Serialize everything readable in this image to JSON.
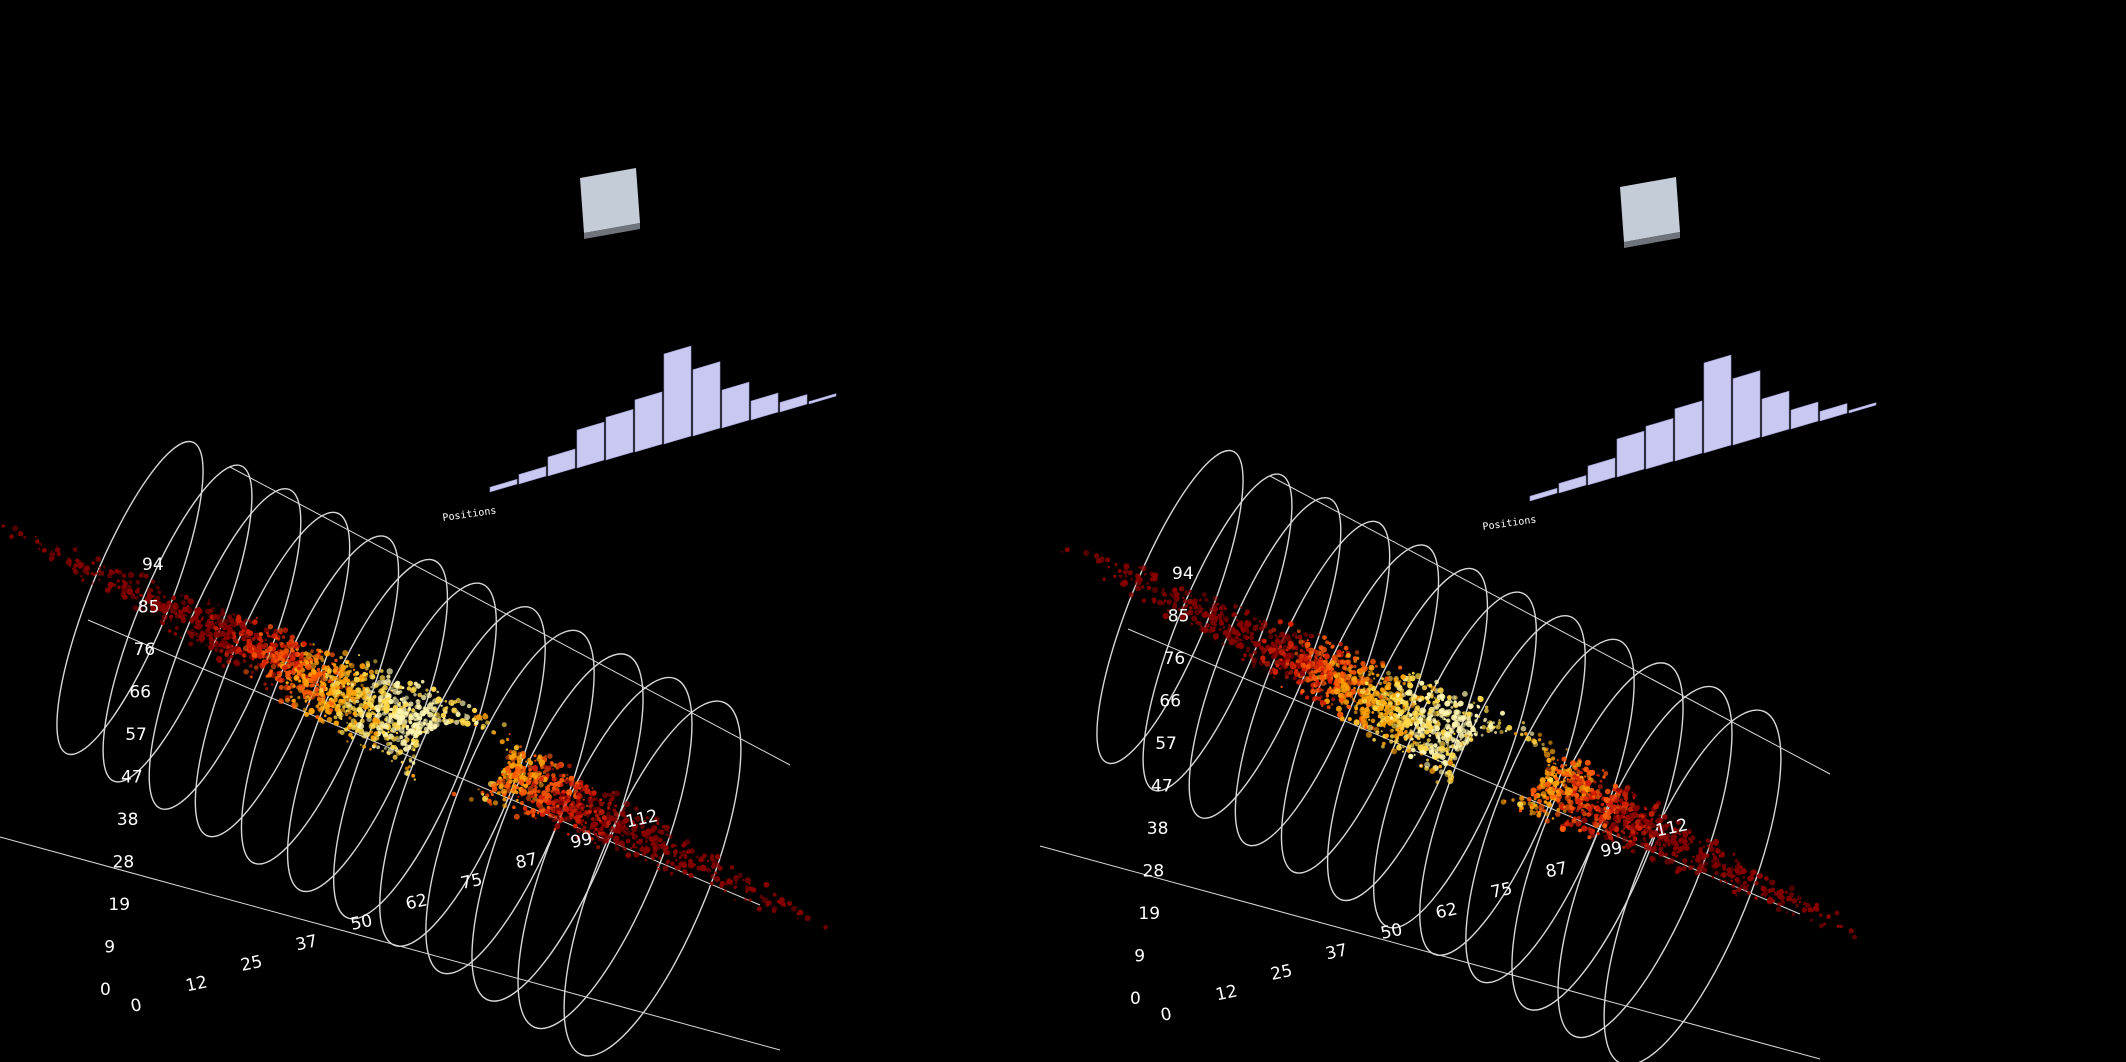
{
  "scene": {
    "background": "#000000",
    "ring_color": "#d8d8d8",
    "bar_color": "#c8c8f0",
    "box_color": "#c4ccd8",
    "heat_colors": [
      "#8a0000",
      "#d42000",
      "#ff5a00",
      "#ffa200",
      "#ffd84a",
      "#fff6b0"
    ]
  },
  "views": [
    {
      "name": "left-stereo-view",
      "axis_title": "Positions",
      "y_ticks": [
        "0",
        "9",
        "19",
        "28",
        "38",
        "47",
        "57",
        "66",
        "76",
        "85",
        "94"
      ],
      "x_ticks": [
        "0",
        "12",
        "25",
        "37",
        "50",
        "62",
        "75",
        "87",
        "99",
        "112"
      ],
      "histogram": [
        2,
        4,
        8,
        16,
        18,
        22,
        38,
        28,
        16,
        8,
        4,
        1
      ]
    },
    {
      "name": "right-stereo-view",
      "axis_title": "Positions",
      "y_ticks": [
        "0",
        "9",
        "19",
        "28",
        "38",
        "47",
        "57",
        "66",
        "76",
        "85",
        "94"
      ],
      "x_ticks": [
        "0",
        "12",
        "25",
        "37",
        "50",
        "62",
        "75",
        "87",
        "99",
        "112"
      ],
      "histogram": [
        2,
        4,
        8,
        16,
        18,
        22,
        38,
        28,
        16,
        8,
        4,
        1
      ]
    }
  ]
}
